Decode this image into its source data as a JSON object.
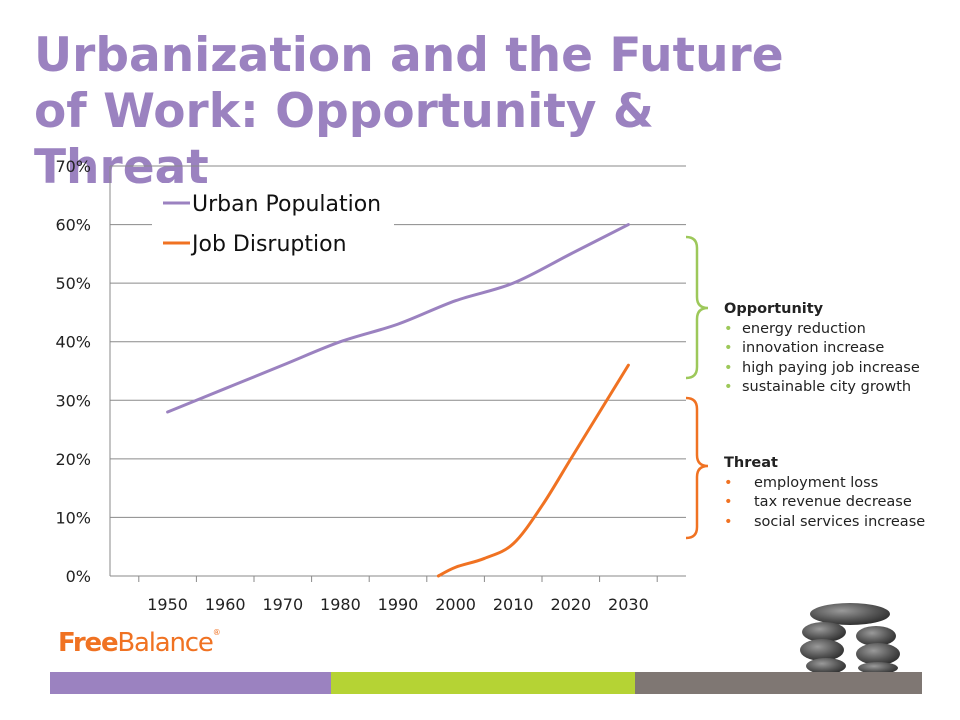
{
  "slide": {
    "title": "Urbanization and the Future of Work: Opportunity & Threat"
  },
  "chart_data": {
    "type": "line",
    "x": [
      1950,
      1960,
      1970,
      1980,
      1990,
      2000,
      2010,
      2020,
      2030
    ],
    "xlim": [
      1940,
      2040
    ],
    "ylim": [
      0,
      0.7
    ],
    "yticks": [
      "0%",
      "10%",
      "20%",
      "30%",
      "40%",
      "50%",
      "60%",
      "70%"
    ],
    "xticks": [
      "1950",
      "1960",
      "1970",
      "1980",
      "1990",
      "2000",
      "2010",
      "2020",
      "2030"
    ],
    "grid": true,
    "legend_position": "top-left",
    "series": [
      {
        "name": "Urban Population",
        "color": "#9b82c0",
        "x": [
          1950,
          1960,
          1970,
          1980,
          1990,
          2000,
          2010,
          2020,
          2030
        ],
        "values": [
          0.28,
          0.32,
          0.36,
          0.4,
          0.43,
          0.47,
          0.5,
          0.55,
          0.6
        ]
      },
      {
        "name": "Job Disruption",
        "color": "#f07222",
        "x": [
          1997,
          2000,
          2005,
          2010,
          2015,
          2020,
          2025,
          2030
        ],
        "values": [
          0.0,
          0.015,
          0.03,
          0.055,
          0.12,
          0.2,
          0.28,
          0.36
        ]
      }
    ]
  },
  "annotations": {
    "opportunity": {
      "heading": "Opportunity",
      "color": "#9dc85a",
      "items": [
        "energy reduction",
        "innovation increase",
        "high paying job increase",
        "sustainable city growth"
      ]
    },
    "threat": {
      "heading": "Threat",
      "color": "#f07222",
      "items": [
        "employment loss",
        "tax revenue decrease",
        "social services increase"
      ]
    }
  },
  "logo": {
    "free": "Free",
    "balance": "Balance",
    "reg": "®"
  },
  "footer_colors": [
    "#9b82c0",
    "#b5d334",
    "#7f7773"
  ]
}
